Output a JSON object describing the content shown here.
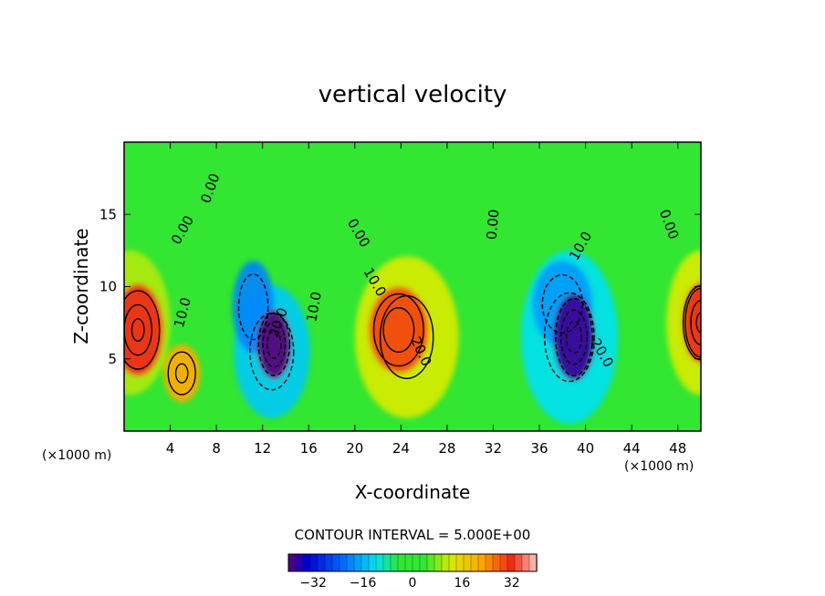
{
  "chart_data": {
    "type": "heatmap",
    "title": "vertical velocity",
    "xlabel": "X-coordinate",
    "ylabel": "Z-coordinate",
    "x_units": "(×1000 m)",
    "y_units": "(×1000 m)",
    "xlim": [
      0,
      50
    ],
    "ylim": [
      0,
      20
    ],
    "x_ticks": [
      4,
      8,
      12,
      16,
      20,
      24,
      28,
      32,
      36,
      40,
      44,
      48
    ],
    "y_ticks": [
      5,
      10,
      15
    ],
    "contour_interval_text": "CONTOUR INTERVAL = 5.000E+00",
    "contour_interval": 5.0,
    "colorbar": {
      "range": [
        -40,
        40
      ],
      "ticks": [
        -32,
        -16,
        0,
        16,
        32
      ],
      "tick_labels": [
        "−32",
        "−16",
        "0",
        "16",
        "32"
      ]
    },
    "contour_labels": [
      {
        "text": "0.00",
        "x": 7.5,
        "z": 16.8,
        "angle": 70
      },
      {
        "text": "0.00",
        "x": 5.1,
        "z": 13.9,
        "angle": 60
      },
      {
        "text": "10.0",
        "x": 5.1,
        "z": 8.2,
        "angle": 75
      },
      {
        "text": "10.0",
        "x": 16.5,
        "z": 8.6,
        "angle": 80
      },
      {
        "text": "20.0",
        "x": 13.4,
        "z": 7.5,
        "angle": 70
      },
      {
        "text": "0.00",
        "x": 20.3,
        "z": 13.7,
        "angle": -60
      },
      {
        "text": "10.0",
        "x": 21.7,
        "z": 10.3,
        "angle": -60
      },
      {
        "text": "20.0",
        "x": 25.7,
        "z": 5.5,
        "angle": -65
      },
      {
        "text": "0.00",
        "x": 32.0,
        "z": 14.3,
        "angle": 85
      },
      {
        "text": "10.0",
        "x": 39.6,
        "z": 12.8,
        "angle": 60
      },
      {
        "text": "20.0",
        "x": 41.4,
        "z": 5.4,
        "angle": -60
      },
      {
        "text": "0.00",
        "x": 47.2,
        "z": 14.3,
        "angle": -70
      }
    ],
    "cells": [
      {
        "x": 1.2,
        "z": 7.0,
        "value": 32,
        "sx": 2.2,
        "sz": 3.2
      },
      {
        "x": 5.0,
        "z": 4.0,
        "value": 22,
        "sx": 1.6,
        "sz": 2.0
      },
      {
        "x": 0.5,
        "z": 7.5,
        "value": 10,
        "sx": 3.5,
        "sz": 5.0
      },
      {
        "x": 13.0,
        "z": 6.0,
        "value": -40,
        "sx": 1.5,
        "sz": 2.4
      },
      {
        "x": 11.2,
        "z": 8.6,
        "value": -20,
        "sx": 1.8,
        "sz": 3.2
      },
      {
        "x": 12.8,
        "z": 5.5,
        "value": -14,
        "sx": 3.3,
        "sz": 4.6
      },
      {
        "x": 23.8,
        "z": 7.0,
        "value": 30,
        "sx": 2.6,
        "sz": 3.0
      },
      {
        "x": 24.5,
        "z": 6.5,
        "value": 12,
        "sx": 4.5,
        "sz": 5.6
      },
      {
        "x": 39.0,
        "z": 6.5,
        "value": -38,
        "sx": 1.8,
        "sz": 3.0
      },
      {
        "x": 38.0,
        "z": 8.8,
        "value": -18,
        "sx": 2.6,
        "sz": 3.0
      },
      {
        "x": 38.6,
        "z": 6.5,
        "value": -12,
        "sx": 4.2,
        "sz": 6.0
      },
      {
        "x": 50.0,
        "z": 7.5,
        "value": 32,
        "sx": 1.6,
        "sz": 2.8
      },
      {
        "x": 50.0,
        "z": 7.5,
        "value": 12,
        "sx": 3.0,
        "sz": 5.0
      }
    ]
  },
  "colors": {
    "background_field": "#32e632",
    "frame": "#000000"
  }
}
